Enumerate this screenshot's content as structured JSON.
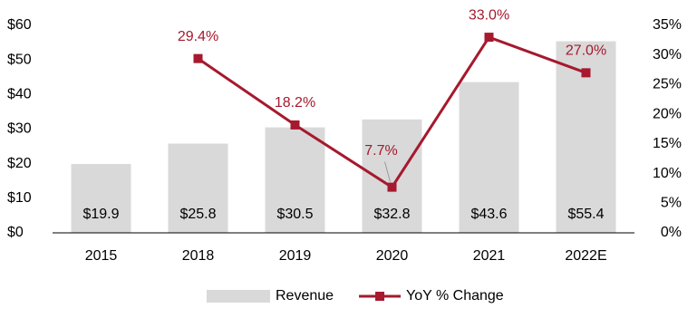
{
  "chart_data": {
    "type": "bar",
    "categories": [
      "2015",
      "2018",
      "2019",
      "2020",
      "2021",
      "2022E"
    ],
    "series": [
      {
        "name": "Revenue",
        "type": "bar",
        "color": "#d9d9d9",
        "values": [
          19.9,
          25.8,
          30.5,
          32.8,
          43.6,
          55.4
        ],
        "value_labels": [
          "$19.9",
          "$25.8",
          "$30.5",
          "$32.8",
          "$43.6",
          "$55.4"
        ]
      },
      {
        "name": "YoY % Change",
        "type": "line",
        "axis": "y2",
        "color": "#a6192e",
        "values": [
          null,
          29.4,
          18.2,
          7.7,
          33.0,
          27.0
        ],
        "value_labels": [
          null,
          "29.4%",
          "18.2%",
          "7.7%",
          "33.0%",
          "27.0%"
        ]
      }
    ],
    "ylim": [
      0,
      60
    ],
    "yticks": [
      {
        "value": 0,
        "label": "$0"
      },
      {
        "value": 10,
        "label": "$10"
      },
      {
        "value": 20,
        "label": "$20"
      },
      {
        "value": 30,
        "label": "$30"
      },
      {
        "value": 40,
        "label": "$40"
      },
      {
        "value": 50,
        "label": "$50"
      },
      {
        "value": 60,
        "label": "$60"
      }
    ],
    "y2lim": [
      0,
      35
    ],
    "y2ticks": [
      {
        "value": 0,
        "label": "0%"
      },
      {
        "value": 5,
        "label": "5%"
      },
      {
        "value": 10,
        "label": "10%"
      },
      {
        "value": 15,
        "label": "15%"
      },
      {
        "value": 20,
        "label": "20%"
      },
      {
        "value": 25,
        "label": "25%"
      },
      {
        "value": 30,
        "label": "30%"
      },
      {
        "value": 35,
        "label": "35%"
      }
    ],
    "grid": false,
    "legend": "bottom"
  }
}
